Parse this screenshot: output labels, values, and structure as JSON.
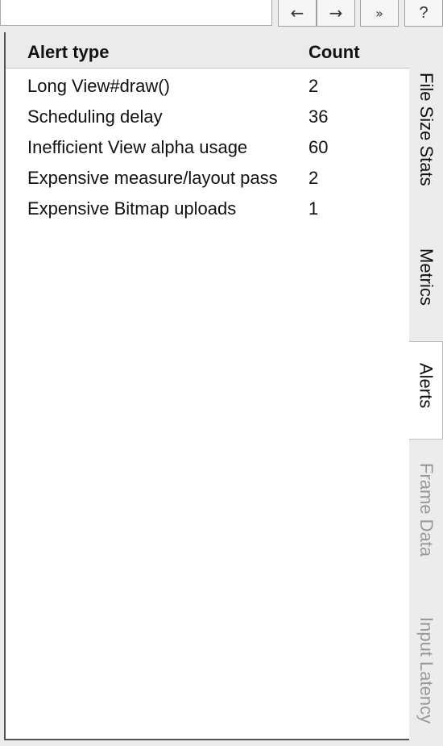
{
  "toolbar": {
    "search_value": "",
    "back_glyph": "←",
    "forward_glyph": "→",
    "more_glyph": "»",
    "help_glyph": "?"
  },
  "table": {
    "columns": [
      "Alert type",
      "Count"
    ],
    "rows": [
      {
        "type": "Long View#draw()",
        "count": "2"
      },
      {
        "type": "Scheduling delay",
        "count": "36"
      },
      {
        "type": "Inefficient View alpha usage",
        "count": "60"
      },
      {
        "type": "Expensive measure/layout pass",
        "count": "2"
      },
      {
        "type": "Expensive Bitmap uploads",
        "count": "1"
      }
    ]
  },
  "tabs": [
    {
      "label": "File Size Stats",
      "state": "normal"
    },
    {
      "label": "Metrics",
      "state": "normal"
    },
    {
      "label": "Alerts",
      "state": "active"
    },
    {
      "label": "Frame Data",
      "state": "disabled"
    },
    {
      "label": "Input Latency",
      "state": "disabled"
    }
  ],
  "colors": {
    "background": "#ececec",
    "panel": "#ffffff",
    "header": "#ebebeb",
    "disabled_text": "#999999"
  }
}
